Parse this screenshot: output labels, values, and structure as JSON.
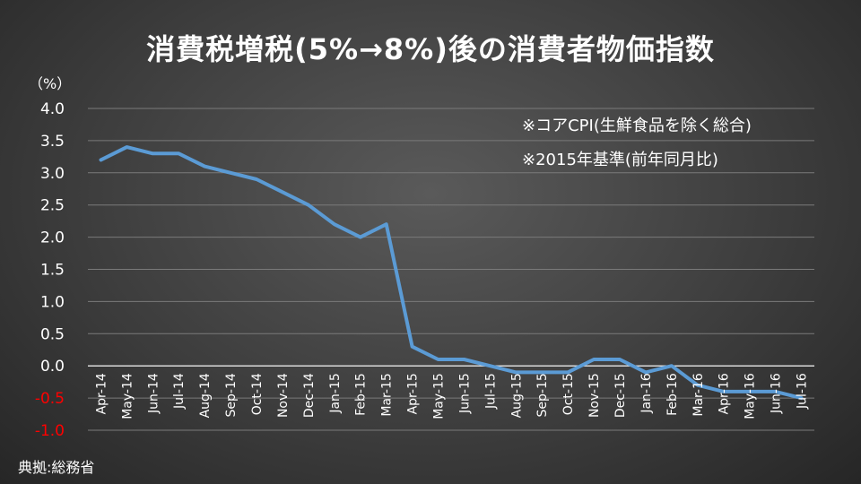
{
  "chart_data": {
    "type": "line",
    "title": "消費税増税(5%→8%)後の消費者物価指数",
    "unit_label": "（%）",
    "notes": [
      "※コアCPI(生鮮食品を除く総合)",
      "※2015年基準(前年同月比)"
    ],
    "source": "典拠:総務省",
    "categories": [
      "Apr-14",
      "May-14",
      "Jun-14",
      "Jul-14",
      "Aug-14",
      "Sep-14",
      "Oct-14",
      "Nov-14",
      "Dec-14",
      "Jan-15",
      "Feb-15",
      "Mar-15",
      "Apr-15",
      "May-15",
      "Jun-15",
      "Jul-15",
      "Aug-15",
      "Sep-15",
      "Oct-15",
      "Nov-15",
      "Dec-15",
      "Jan-16",
      "Feb-16",
      "Mar-16",
      "Apr-16",
      "May-16",
      "Jun-16",
      "Jul-16"
    ],
    "values": [
      3.2,
      3.4,
      3.3,
      3.3,
      3.1,
      3.0,
      2.9,
      2.7,
      2.5,
      2.2,
      2.0,
      2.2,
      0.3,
      0.1,
      0.1,
      0.0,
      -0.1,
      -0.1,
      -0.1,
      0.1,
      0.1,
      -0.1,
      0.0,
      -0.3,
      -0.4,
      -0.4,
      -0.4,
      -0.5
    ],
    "yticks": [
      "4.0",
      "3.5",
      "3.0",
      "2.5",
      "2.0",
      "1.5",
      "1.0",
      "0.5",
      "0.0",
      "-0.5",
      "-1.0"
    ],
    "ylim": [
      -1.0,
      4.0
    ],
    "grid": true,
    "legend": "none",
    "colors": {
      "line": "#5b9bd5",
      "grid": "#7a7a7a",
      "axis": "#d9d9d9",
      "negative": "#ff0000",
      "text": "#ffffff"
    }
  }
}
